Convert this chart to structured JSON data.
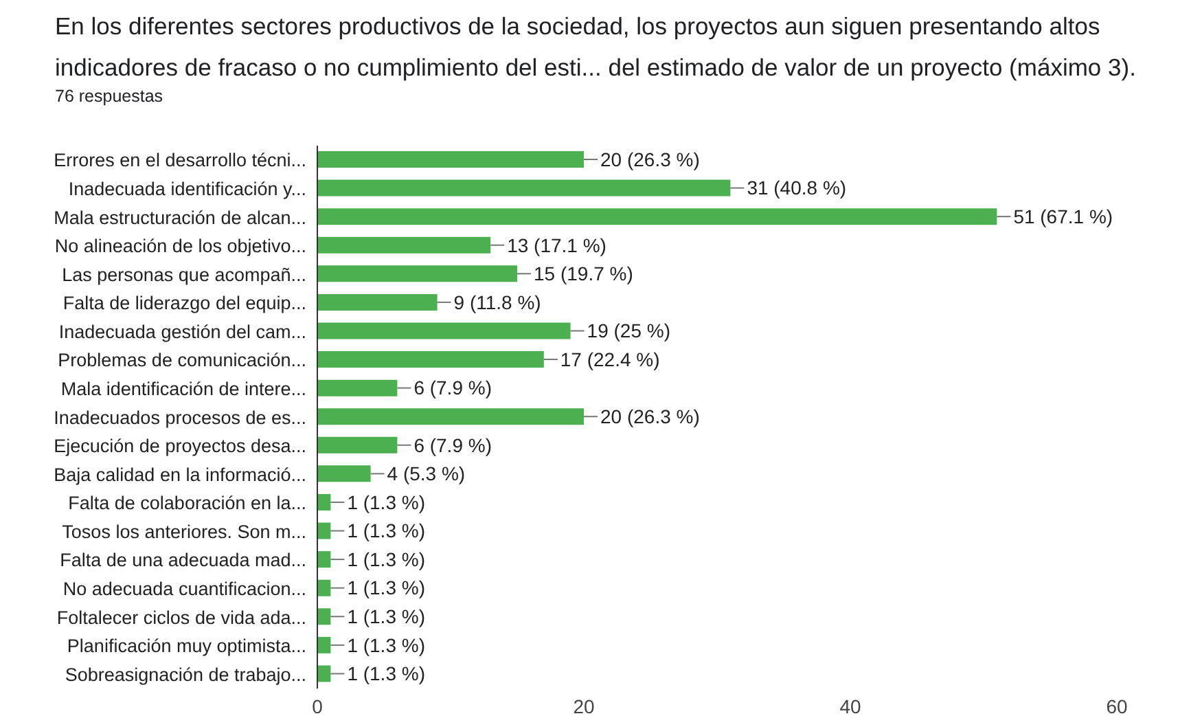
{
  "chart_data": {
    "type": "bar",
    "orientation": "horizontal",
    "title": "En los diferentes sectores productivos de la sociedad, los proyectos aun siguen presentando altos indicadores de fracaso o no cumplimiento del esti... del estimado de valor de un proyecto (máximo 3).",
    "subtitle": "76 respuestas",
    "categories": [
      "Errores en el desarrollo técni...",
      "Inadecuada identificación y...",
      "Mala estructuración de alcan...",
      "No alineación de los objetivo...",
      "Las personas que acompañ...",
      "Falta de liderazgo del equip...",
      "Inadecuada gestión del cam...",
      "Problemas de comunicación...",
      "Mala identificación de intere...",
      "Inadecuados procesos de es...",
      "Ejecución de proyectos desa...",
      "Baja calidad en la informació...",
      "Falta de colaboración en la...",
      "Tosos los anteriores. Son m...",
      "Falta de una adecuada mad...",
      "No adecuada cuantificacion...",
      "Foltalecer ciclos de vida ada...",
      "Planificación muy optimista...",
      "Sobreasignación de trabajo..."
    ],
    "values": [
      20,
      31,
      51,
      13,
      15,
      9,
      19,
      17,
      6,
      20,
      6,
      4,
      1,
      1,
      1,
      1,
      1,
      1,
      1
    ],
    "value_labels": [
      "20 (26.3 %)",
      "31 (40.8 %)",
      "51 (67.1 %)",
      "13 (17.1 %)",
      "15 (19.7 %)",
      "9 (11.8 %)",
      "19 (25 %)",
      "17 (22.4 %)",
      "6 (7.9 %)",
      "20 (26.3 %)",
      "6 (7.9 %)",
      "4 (5.3 %)",
      "1 (1.3 %)",
      "1 (1.3 %)",
      "1 (1.3 %)",
      "1 (1.3 %)",
      "1 (1.3 %)",
      "1 (1.3 %)",
      "1 (1.3 %)"
    ],
    "color": "#4caf50",
    "xlim": [
      0,
      60
    ],
    "xticks": [
      0,
      20,
      40,
      60
    ],
    "grid": false
  }
}
